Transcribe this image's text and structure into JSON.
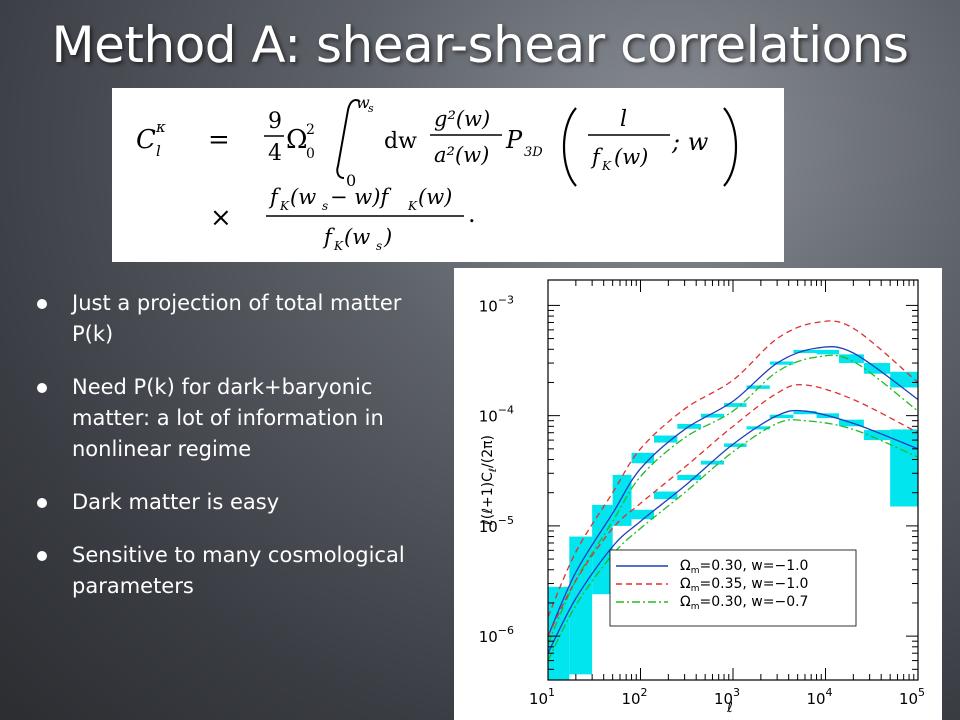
{
  "slide": {
    "title": "Method A: shear-shear correlations",
    "bullets": [
      "Just a projection of total matter P(k)",
      "Need P(k) for dark+baryonic matter: a lot of information in nonlinear regime",
      "Dark matter is easy",
      "Sensitive to many cosmological parameters"
    ]
  },
  "formula": {
    "lhs": "C",
    "lhs_sub": "l",
    "lhs_sup": "κ",
    "equals": "=",
    "coef_num": "9",
    "coef_den": "4",
    "omega": "Ω",
    "omega_sub": "0",
    "omega_sup": "2",
    "int_upper": "w",
    "int_upper_sub": "s",
    "int_lower": "0",
    "dw": "dw",
    "g_num": "g²(w)",
    "a_den": "a²(w)",
    "p3d": "P",
    "p3d_sub": "3D",
    "l_num": "l",
    "fk_den": "f",
    "fk_den_sub": "K",
    "fk_den_arg": "(w)",
    "semicolon_w": "; w",
    "times": "×",
    "num2": "f",
    "num2_sub": "K",
    "num2_arg": "(w",
    "num2_arg_sub": "s",
    "num2_rest": " − w)f",
    "num2_rest_sub": "K",
    "num2_rest_arg": "(w)",
    "den2": "f",
    "den2_sub": "K",
    "den2_arg": "(w",
    "den2_arg_sub": "s",
    "den2_close": ")",
    "period": "."
  },
  "chart_data": {
    "type": "line",
    "xlabel": "ℓ",
    "ylabel": "ℓ(ℓ+1)C",
    "ylabel_sub": "ℓ",
    "ylabel_tail": "/(2π)",
    "xscale": "log",
    "yscale": "log",
    "xlim": [
      10,
      100000
    ],
    "ylim": [
      4e-07,
      0.0017
    ],
    "x_ticks": [
      {
        "base": "10",
        "exp": "1",
        "value": 10
      },
      {
        "base": "10",
        "exp": "2",
        "value": 100
      },
      {
        "base": "10",
        "exp": "3",
        "value": 1000
      },
      {
        "base": "10",
        "exp": "4",
        "value": 10000
      },
      {
        "base": "10",
        "exp": "5",
        "value": 100000
      }
    ],
    "y_ticks": [
      {
        "base": "10",
        "exp": "−6",
        "value": 1e-06
      },
      {
        "base": "10",
        "exp": "−5",
        "value": 1e-05
      },
      {
        "base": "10",
        "exp": "−4",
        "value": 0.0001
      },
      {
        "base": "10",
        "exp": "−3",
        "value": 0.001
      }
    ],
    "legend_position": "bottom-right",
    "series": [
      {
        "name": "Ωm=0.30, w=−1.0",
        "legend_main": "Ω",
        "legend_sub": "m",
        "legend_rest": "=0.30,  w=−1.0",
        "color": "#1f3fbf",
        "dash": "",
        "group": "z_high",
        "x": [
          10,
          20,
          50,
          100,
          300,
          1000,
          3000,
          8000,
          20000,
          100000
        ],
        "y": [
          1e-06,
          3.8e-06,
          1.3e-05,
          3.3e-05,
          7.5e-05,
          0.000135,
          0.0003,
          0.00041,
          0.00037,
          0.00014
        ]
      },
      {
        "name": "Ωm=0.35, w=−1.0",
        "legend_main": "Ω",
        "legend_sub": "m",
        "legend_rest": "=0.35,  w=−1.0",
        "color": "#e03030",
        "dash": "6,4",
        "group": "z_high",
        "x": [
          10,
          20,
          50,
          100,
          300,
          1000,
          3000,
          8000,
          20000,
          100000
        ],
        "y": [
          1.5e-06,
          5.8e-06,
          2e-05,
          5e-05,
          0.000115,
          0.00021,
          0.0005,
          0.0007,
          0.00062,
          0.0002
        ]
      },
      {
        "name": "Ωm=0.30, w=−0.7",
        "legend_main": "Ω",
        "legend_sub": "m",
        "legend_rest": "=0.30,  w=−0.7",
        "color": "#22bb22",
        "dash": "8,3,2,3",
        "group": "z_high",
        "x": [
          10,
          20,
          50,
          100,
          300,
          1000,
          3000,
          8000,
          20000,
          100000
        ],
        "y": [
          8.5e-07,
          3.2e-06,
          1.1e-05,
          2.8e-05,
          6.3e-05,
          0.00011,
          0.00025,
          0.00034,
          0.00031,
          0.00011
        ]
      },
      {
        "name": "",
        "color": "#1f3fbf",
        "dash": "",
        "group": "z_low",
        "x": [
          10,
          20,
          50,
          100,
          300,
          1000,
          3000,
          6000,
          20000,
          100000
        ],
        "y": [
          7e-07,
          2.2e-06,
          6.5e-06,
          1.1e-05,
          2.3e-05,
          5.5e-05,
          0.0001,
          0.00011,
          8.5e-05,
          5e-05
        ]
      },
      {
        "name": "",
        "color": "#e03030",
        "dash": "6,4",
        "group": "z_low",
        "x": [
          10,
          20,
          50,
          100,
          300,
          1000,
          3000,
          6000,
          20000,
          100000
        ],
        "y": [
          1e-06,
          3.2e-06,
          9.5e-06,
          1.6e-05,
          3.4e-05,
          8e-05,
          0.00016,
          0.00019,
          0.00014,
          7e-05
        ]
      },
      {
        "name": "",
        "color": "#22bb22",
        "dash": "8,3,2,3",
        "group": "z_low",
        "x": [
          10,
          20,
          50,
          100,
          300,
          1000,
          3000,
          6000,
          20000,
          100000
        ],
        "y": [
          6e-07,
          1.9e-06,
          5.5e-06,
          9.5e-06,
          2e-05,
          4.7e-05,
          8.5e-05,
          9e-05,
          7.5e-05,
          4.2e-05
        ]
      }
    ],
    "error_boxes": {
      "color": "#00e5ee",
      "boxes": [
        {
          "x0": 10,
          "x1": 17,
          "y0": 4e-07,
          "y1": 2.8e-06
        },
        {
          "x0": 17,
          "x1": 30,
          "y0": 4.5e-07,
          "y1": 8e-06
        },
        {
          "x0": 30,
          "x1": 50,
          "y0": 2.4e-06,
          "y1": 1.55e-05
        },
        {
          "x0": 50,
          "x1": 80,
          "y0": 1e-05,
          "y1": 2.9e-05
        },
        {
          "x0": 80,
          "x1": 140,
          "y0": 3.7e-05,
          "y1": 4.6e-05
        },
        {
          "x0": 80,
          "x1": 140,
          "y0": 1.15e-05,
          "y1": 1.4e-05
        },
        {
          "x0": 140,
          "x1": 250,
          "y0": 5.7e-05,
          "y1": 6.6e-05
        },
        {
          "x0": 140,
          "x1": 250,
          "y0": 1.75e-05,
          "y1": 2.05e-05
        },
        {
          "x0": 250,
          "x1": 450,
          "y0": 7.6e-05,
          "y1": 8.4e-05
        },
        {
          "x0": 250,
          "x1": 450,
          "y0": 2.6e-05,
          "y1": 2.9e-05
        },
        {
          "x0": 450,
          "x1": 800,
          "y0": 9.6e-05,
          "y1": 0.000104
        },
        {
          "x0": 450,
          "x1": 800,
          "y0": 3.6e-05,
          "y1": 3.9e-05
        },
        {
          "x0": 800,
          "x1": 1400,
          "y0": 0.00012,
          "y1": 0.00013
        },
        {
          "x0": 800,
          "x1": 1400,
          "y0": 5.2e-05,
          "y1": 5.6e-05
        },
        {
          "x0": 1400,
          "x1": 2500,
          "y0": 0.000175,
          "y1": 0.000188
        },
        {
          "x0": 1400,
          "x1": 2500,
          "y0": 7.5e-05,
          "y1": 8e-05
        },
        {
          "x0": 2500,
          "x1": 4500,
          "y0": 0.00029,
          "y1": 0.00031
        },
        {
          "x0": 2500,
          "x1": 4500,
          "y0": 9.5e-05,
          "y1": 0.000102
        },
        {
          "x0": 4500,
          "x1": 8000,
          "y0": 0.00037,
          "y1": 0.000395
        },
        {
          "x0": 4500,
          "x1": 8000,
          "y0": 0.000103,
          "y1": 0.00011
        },
        {
          "x0": 8000,
          "x1": 14000,
          "y0": 0.00036,
          "y1": 0.000395
        },
        {
          "x0": 8000,
          "x1": 14000,
          "y0": 9.5e-05,
          "y1": 0.000105
        },
        {
          "x0": 14000,
          "x1": 26000,
          "y0": 0.0003,
          "y1": 0.00036
        },
        {
          "x0": 14000,
          "x1": 26000,
          "y0": 8e-05,
          "y1": 9.2e-05
        },
        {
          "x0": 26000,
          "x1": 50000,
          "y0": 0.00024,
          "y1": 0.0003
        },
        {
          "x0": 26000,
          "x1": 50000,
          "y0": 6e-05,
          "y1": 7.4e-05
        },
        {
          "x0": 50000,
          "x1": 100000,
          "y0": 0.00018,
          "y1": 0.00025
        },
        {
          "x0": 50000,
          "x1": 100000,
          "y0": 1.5e-05,
          "y1": 7.5e-05
        }
      ]
    }
  }
}
